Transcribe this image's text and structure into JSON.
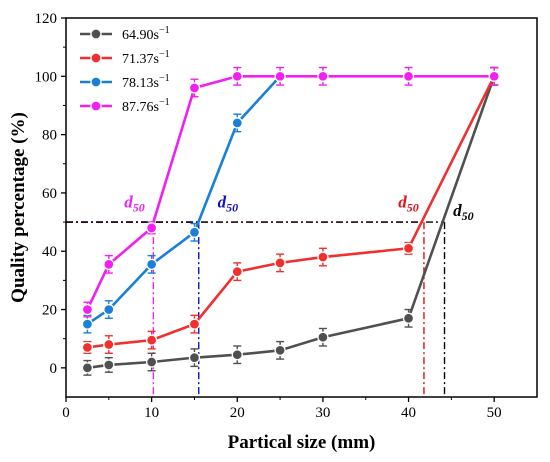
{
  "chart_data": {
    "type": "line",
    "xlabel": "Partical size (mm)",
    "ylabel": "Quality percentage (%)",
    "xlim": [
      0,
      55
    ],
    "ylim": [
      -10,
      120
    ],
    "xticks": [
      0,
      10,
      20,
      30,
      40,
      50
    ],
    "yticks": [
      0,
      20,
      40,
      60,
      80,
      100,
      120
    ],
    "legend_position": "top-left",
    "series": [
      {
        "name": "64.90s",
        "superscript": "−1",
        "color": "#505050",
        "x": [
          2.5,
          5,
          10,
          15,
          20,
          25,
          30,
          40,
          50
        ],
        "y": [
          0,
          1,
          2,
          3.5,
          4.5,
          6,
          10.5,
          17,
          100
        ],
        "err": [
          2.5,
          2.5,
          3,
          3,
          3,
          3,
          3,
          3,
          3
        ]
      },
      {
        "name": "71.37s",
        "superscript": "−1",
        "color": "#f0302e",
        "x": [
          2.5,
          5,
          10,
          15,
          20,
          25,
          30,
          40,
          50
        ],
        "y": [
          7,
          8,
          9.5,
          15,
          33,
          36,
          38,
          41,
          100
        ],
        "err": [
          2,
          3,
          3,
          3,
          3,
          3,
          3,
          2,
          3
        ]
      },
      {
        "name": "78.13s",
        "superscript": "−1",
        "color": "#1a7fd6",
        "x": [
          2.5,
          5,
          10,
          15,
          20,
          25
        ],
        "y": [
          15,
          20,
          35.5,
          46.5,
          84,
          100
        ],
        "err": [
          3,
          3,
          3,
          3,
          3,
          0
        ]
      },
      {
        "name": "87.76s",
        "superscript": "−1",
        "color": "#f020f0",
        "x": [
          2.5,
          5,
          10,
          15,
          20,
          25,
          30,
          40,
          50
        ],
        "y": [
          20,
          35.5,
          48,
          96,
          100,
          100,
          100,
          100,
          100
        ],
        "err": [
          2.5,
          3,
          2,
          3,
          3,
          3,
          3,
          3,
          3
        ]
      }
    ],
    "d50_markers": [
      {
        "label": "d",
        "subscript": "50",
        "color": "#f020f0",
        "x": 10.2,
        "y": 50,
        "label_x": 6.8,
        "label_y": 55
      },
      {
        "label": "d",
        "subscript": "50",
        "color": "#1010cc",
        "x": 15.5,
        "y": 50,
        "label_x": 17.7,
        "label_y": 55
      },
      {
        "label": "d",
        "subscript": "50",
        "color": "#e01010",
        "x": 41.8,
        "y": 50,
        "label_x": 38.8,
        "label_y": 55
      },
      {
        "label": "d",
        "subscript": "50",
        "color": "#000000",
        "x": 44.2,
        "y": 50,
        "label_x": 45.2,
        "label_y": 52
      }
    ]
  }
}
